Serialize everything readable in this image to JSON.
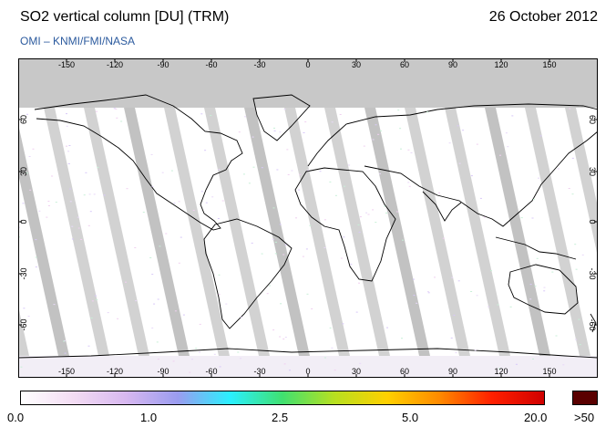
{
  "header": {
    "title": "SO2 vertical column [DU] (TRM)",
    "date": "26 October 2012",
    "credit": "OMI  –  KNMI/FMI/NASA"
  },
  "map": {
    "lon_ticks": [
      "-150",
      "-120",
      "-90",
      "-60",
      "-30",
      "0",
      "30",
      "60",
      "90",
      "120",
      "150"
    ],
    "lat_ticks": [
      "60",
      "30",
      "0",
      "-30",
      "-60"
    ],
    "colors": {
      "no_data": "#c8c8c8",
      "orbit_gap": "#bfbfbf",
      "coast": "#000000",
      "background": "#ffffff"
    }
  },
  "colorbar": {
    "labels": [
      "0.0",
      "1.0",
      "2.5",
      "5.0",
      "20.0",
      ">50"
    ],
    "stops": [
      "#ffffff",
      "#f3dcf3",
      "#d8b8f0",
      "#9a9cf0",
      "#2af0ff",
      "#40e070",
      "#b8e020",
      "#ffd000",
      "#ff8a00",
      "#ff2000",
      "#d00000"
    ],
    "over_color": "#5a0000"
  }
}
